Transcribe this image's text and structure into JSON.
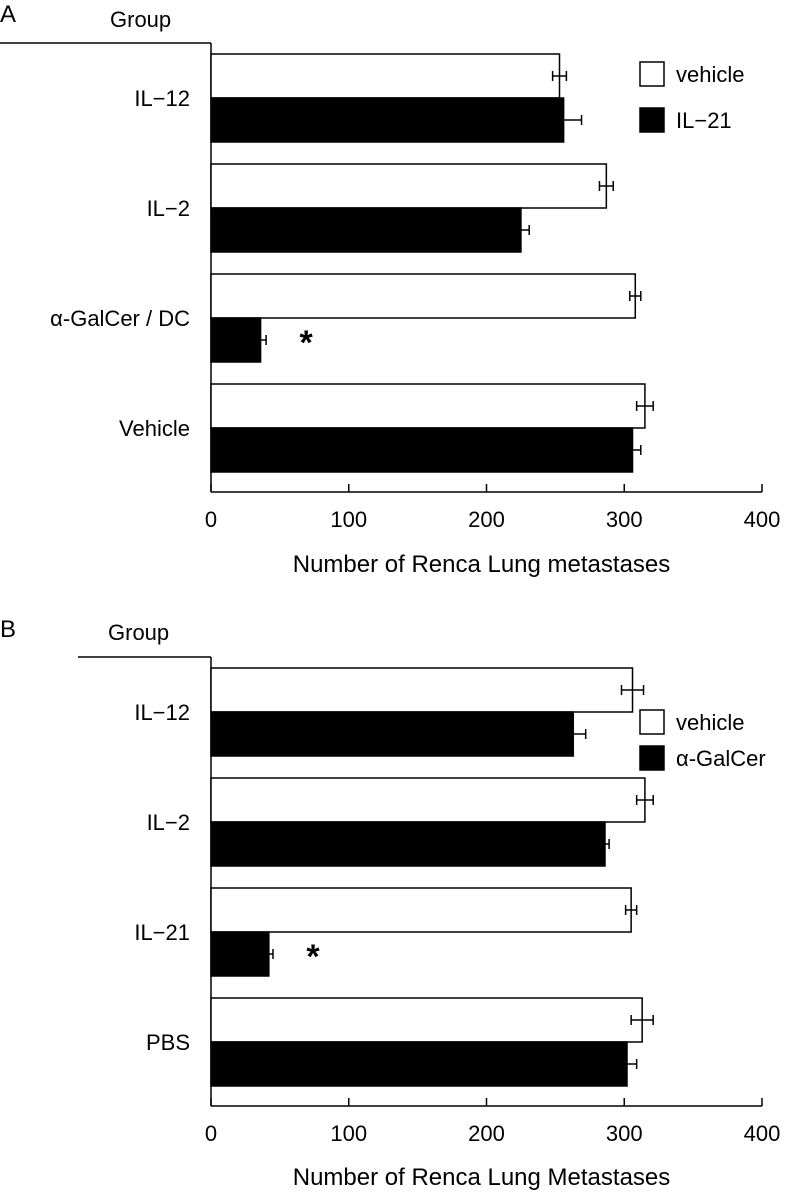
{
  "chart_data": [
    {
      "type": "bar",
      "orientation": "horizontal",
      "panel_label": "A",
      "group_header": "Group",
      "categories": [
        "IL-12",
        "IL-2",
        "α-GalCer / DC",
        "Vehicle"
      ],
      "category_labels": [
        "IL−12",
        "IL−2",
        "α-GalCer / DC",
        "Vehicle"
      ],
      "series": [
        {
          "name": "vehicle",
          "color": "#ffffff",
          "values": [
            253,
            287,
            308,
            315
          ],
          "errors": [
            5,
            5,
            4,
            6
          ]
        },
        {
          "name": "IL−21",
          "color": "#000000",
          "values": [
            256,
            225,
            36,
            306
          ],
          "errors": [
            13,
            6,
            4,
            6
          ]
        }
      ],
      "significance": [
        {
          "category_index": 2,
          "series_index": 1,
          "mark": "*"
        }
      ],
      "xlabel": "Number of Renca Lung metastases",
      "xlim": [
        0,
        400
      ],
      "xticks": [
        0,
        100,
        200,
        300,
        400
      ],
      "legend_position": "top-right",
      "grid": false
    },
    {
      "type": "bar",
      "orientation": "horizontal",
      "panel_label": "B",
      "group_header": "Group",
      "categories": [
        "IL-12",
        "IL-2",
        "IL-21",
        "PBS"
      ],
      "category_labels": [
        "IL−12",
        "IL−2",
        "IL−21",
        "PBS"
      ],
      "series": [
        {
          "name": "vehicle",
          "color": "#ffffff",
          "values": [
            306,
            315,
            305,
            313
          ],
          "errors": [
            8,
            6,
            4,
            8
          ]
        },
        {
          "name": "α-GalCer",
          "color": "#000000",
          "values": [
            263,
            286,
            42,
            302
          ],
          "errors": [
            9,
            3,
            3,
            7
          ]
        }
      ],
      "significance": [
        {
          "category_index": 2,
          "series_index": 1,
          "mark": "*"
        }
      ],
      "xlabel": "Number of Renca Lung Metastases",
      "xlim": [
        0,
        400
      ],
      "xticks": [
        0,
        100,
        200,
        300,
        400
      ],
      "legend_position": "right",
      "grid": false
    }
  ]
}
